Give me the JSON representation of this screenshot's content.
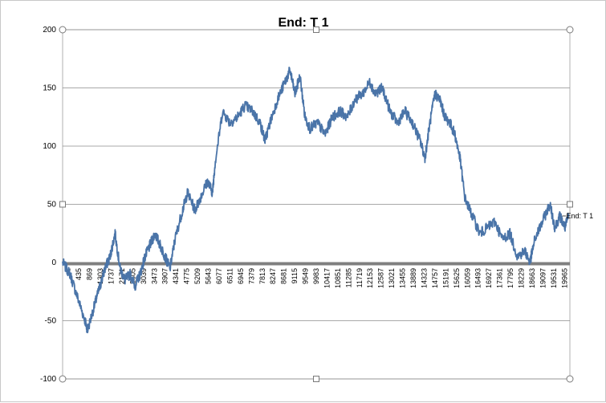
{
  "chart_data": {
    "type": "line",
    "title": "End: T 1",
    "xlabel": "",
    "ylabel": "",
    "ylim": [
      -100,
      200
    ],
    "y_ticks": [
      -100,
      -50,
      0,
      50,
      100,
      150,
      200
    ],
    "x_tick_labels": [
      "1",
      "435",
      "869",
      "1303",
      "1737",
      "2171",
      "2605",
      "3039",
      "3473",
      "3907",
      "4341",
      "4775",
      "5209",
      "5643",
      "6077",
      "6511",
      "6945",
      "7379",
      "7813",
      "8247",
      "8681",
      "9115",
      "9549",
      "9983",
      "10417",
      "10851",
      "11285",
      "11719",
      "12153",
      "12587",
      "13021",
      "13455",
      "13889",
      "14323",
      "14757",
      "15191",
      "15625",
      "16059",
      "16493",
      "16927",
      "17361",
      "17795",
      "18229",
      "18663",
      "19097",
      "19531",
      "19965"
    ],
    "xlim": [
      1,
      20300
    ],
    "grid": true,
    "legend": "none",
    "series": [
      {
        "name": "End: T 1",
        "color": "#4a74a8",
        "x": [
          1,
          300,
          600,
          900,
          1000,
          1300,
          1500,
          1700,
          1900,
          2100,
          2300,
          2500,
          2700,
          2900,
          3100,
          3300,
          3500,
          3700,
          3900,
          4100,
          4300,
          4500,
          4800,
          5000,
          5300,
          5500,
          5800,
          6000,
          6100,
          6400,
          6700,
          7000,
          7300,
          7600,
          7900,
          8100,
          8300,
          8600,
          8900,
          9100,
          9300,
          9500,
          9700,
          9900,
          10200,
          10500,
          10800,
          11100,
          11400,
          11700,
          12000,
          12300,
          12500,
          12800,
          13100,
          13400,
          13700,
          14000,
          14300,
          14500,
          14700,
          14900,
          15100,
          15300,
          15500,
          15700,
          15900,
          16100,
          16400,
          16700,
          17000,
          17300,
          17600,
          17900,
          18200,
          18500,
          18700,
          18900,
          19200,
          19500,
          19700,
          19900,
          20100,
          20250
        ],
        "y": [
          0,
          -10,
          -30,
          -50,
          -58,
          -35,
          -20,
          -5,
          5,
          25,
          -5,
          -15,
          -10,
          -20,
          -10,
          5,
          15,
          25,
          15,
          5,
          -5,
          20,
          45,
          60,
          45,
          55,
          70,
          60,
          85,
          130,
          120,
          125,
          135,
          130,
          120,
          105,
          120,
          140,
          155,
          165,
          145,
          160,
          125,
          115,
          120,
          110,
          125,
          130,
          125,
          140,
          145,
          155,
          145,
          150,
          130,
          120,
          130,
          120,
          105,
          90,
          120,
          145,
          140,
          125,
          120,
          110,
          90,
          55,
          40,
          25,
          30,
          35,
          20,
          25,
          5,
          10,
          0,
          20,
          35,
          50,
          30,
          40,
          30,
          40
        ]
      }
    ]
  }
}
